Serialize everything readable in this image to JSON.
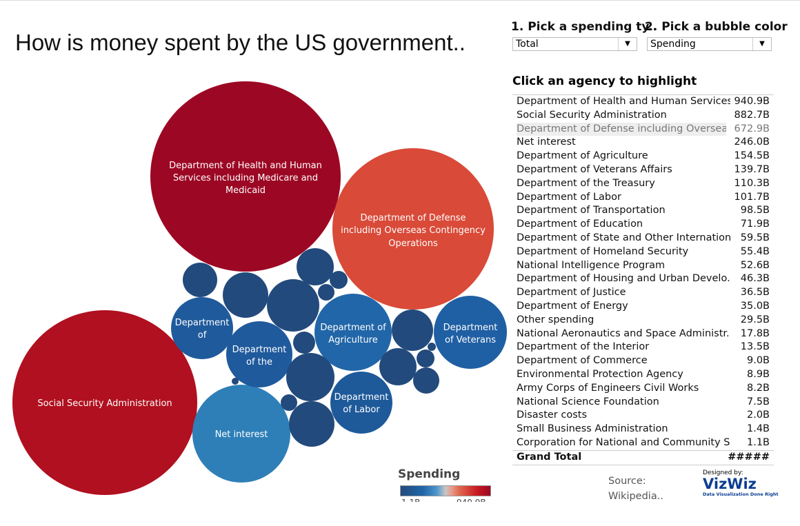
{
  "title": "How is money spent by the US government..",
  "controls": {
    "spending_type_label": "1. Pick a spending ty..",
    "spending_type_value": "Total",
    "bubble_color_label": "2. Pick a bubble color",
    "bubble_color_value": "Spending"
  },
  "list_title": "Click an agency to highlight",
  "chart_data": {
    "type": "bubble",
    "color_by": "Spending",
    "color_scale": [
      "#234a7c",
      "#2166a8",
      "#c8c8c8",
      "#e06a50",
      "#9c0824"
    ],
    "bubble_labels": [
      "Department of Health and Human Services including Medicare and Medicaid",
      "Department of Defense including Overseas Contingency Operations",
      "Social Security Administration",
      "Net interest",
      "Department of Agriculture",
      "Department of Veterans",
      "Department of the",
      "Department of Labor",
      "Department of"
    ],
    "legend": {
      "title": "Spending",
      "min": "1.1B",
      "max": "940.9B"
    }
  },
  "agencies": [
    {
      "name": "Department of Health and Human Services..",
      "value": "940.9B"
    },
    {
      "name": "Social Security Administration",
      "value": "882.7B"
    },
    {
      "name": "Department of Defense including Overseas..",
      "value": "672.9B"
    },
    {
      "name": "Net interest",
      "value": "246.0B"
    },
    {
      "name": "Department of Agriculture",
      "value": "154.5B"
    },
    {
      "name": "Department of Veterans Affairs",
      "value": "139.7B"
    },
    {
      "name": "Department of the Treasury",
      "value": "110.3B"
    },
    {
      "name": "Department of Labor",
      "value": "101.7B"
    },
    {
      "name": "Department of Transportation",
      "value": "98.5B"
    },
    {
      "name": "Department of Education",
      "value": "71.9B"
    },
    {
      "name": "Department of State and Other Internation..",
      "value": "59.5B"
    },
    {
      "name": "Department of Homeland Security",
      "value": "55.4B"
    },
    {
      "name": "National Intelligence Program",
      "value": "52.6B"
    },
    {
      "name": "Department of Housing and Urban Develo..",
      "value": "46.3B"
    },
    {
      "name": "Department of Justice",
      "value": "36.5B"
    },
    {
      "name": "Department of Energy",
      "value": "35.0B"
    },
    {
      "name": "Other spending",
      "value": "29.5B"
    },
    {
      "name": "National Aeronautics and Space Administr..",
      "value": "17.8B"
    },
    {
      "name": "Department of the Interior",
      "value": "13.5B"
    },
    {
      "name": "Department of Commerce",
      "value": "9.0B"
    },
    {
      "name": "Environmental Protection Agency",
      "value": "8.9B"
    },
    {
      "name": "Army Corps of Engineers Civil Works",
      "value": "8.2B"
    },
    {
      "name": "National Science Foundation",
      "value": "7.5B"
    },
    {
      "name": "Disaster costs",
      "value": "2.0B"
    },
    {
      "name": "Small Business Administration",
      "value": "1.4B"
    },
    {
      "name": "Corporation for National and Community S..",
      "value": "1.1B"
    }
  ],
  "grand_total": {
    "label": "Grand Total",
    "value": "#####"
  },
  "source": {
    "label": "Source:",
    "value": "Wikipedia.."
  },
  "logo": {
    "designed_by": "Designed by:",
    "brand": "VizWiz",
    "tagline": "Data Visualization Done Right"
  }
}
